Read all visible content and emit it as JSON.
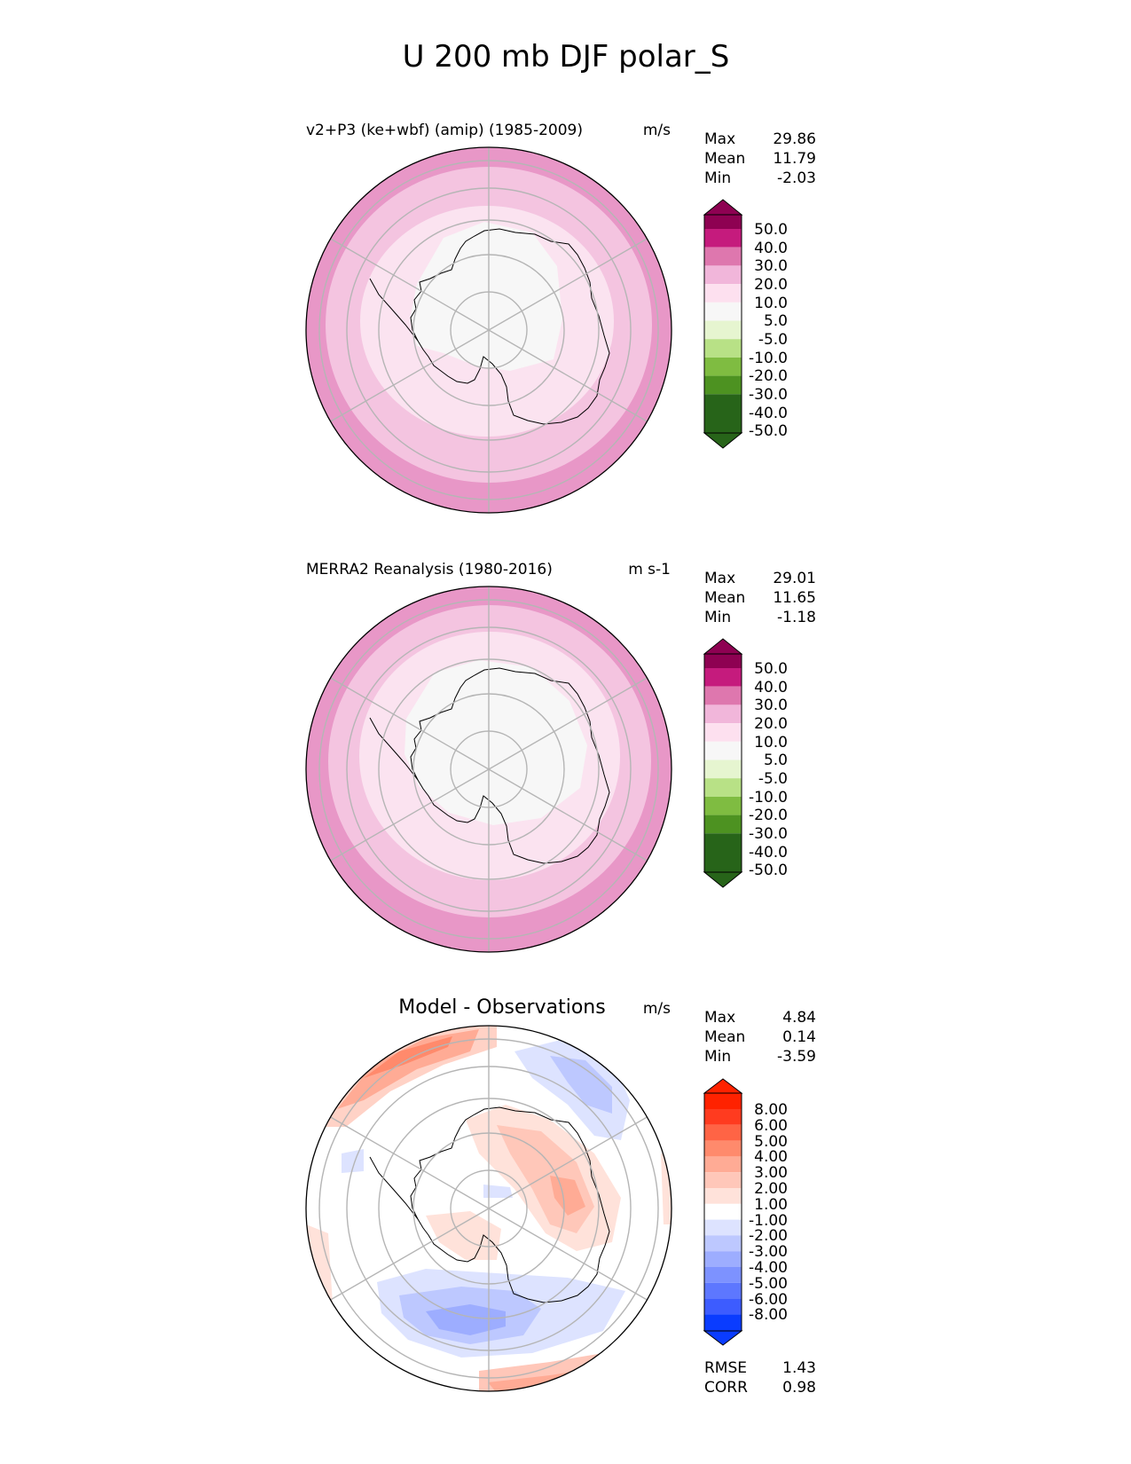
{
  "figure_title": "U 200 mb DJF polar_S",
  "chart_data": [
    {
      "type": "heatmap",
      "projection": "south-polar-stereographic",
      "title": "v2+P3 (ke+wbf) (amip) (1985-2009)",
      "units": "m/s",
      "stats": [
        {
          "label": "Max",
          "value": "29.86"
        },
        {
          "label": "Mean",
          "value": "11.79"
        },
        {
          "label": "Min",
          "value": "-2.03"
        }
      ],
      "colorbar": {
        "labels": [
          "50.0",
          "40.0",
          "30.0",
          "20.0",
          "10.0",
          "5.0",
          "-5.0",
          "-10.0",
          "-20.0",
          "-30.0",
          "-40.0",
          "-50.0"
        ],
        "colors": [
          "#8e0152",
          "#c51b7d",
          "#de77ae",
          "#f1b6da",
          "#fde0ef",
          "#f7f7f7",
          "#e6f5d0",
          "#b8e186",
          "#7fbc41",
          "#4d9221",
          "#276419"
        ],
        "top_extend": "#8e0152",
        "bottom_extend": "#276419"
      },
      "field_rings": [
        {
          "r": 1.0,
          "color": "#e897c7"
        },
        {
          "r": 0.88,
          "color": "#f4c4e0"
        },
        {
          "r": 0.68,
          "color": "#fbe3f0"
        },
        {
          "r": 0.44,
          "color": "#f7f7f7"
        }
      ]
    },
    {
      "type": "heatmap",
      "projection": "south-polar-stereographic",
      "title": "MERRA2 Reanalysis (1980-2016)",
      "units": "m s-1",
      "stats": [
        {
          "label": "Max",
          "value": "29.01"
        },
        {
          "label": "Mean",
          "value": "11.65"
        },
        {
          "label": "Min",
          "value": "-1.18"
        }
      ],
      "colorbar": {
        "labels": [
          "50.0",
          "40.0",
          "30.0",
          "20.0",
          "10.0",
          "5.0",
          "-5.0",
          "-10.0",
          "-20.0",
          "-30.0",
          "-40.0",
          "-50.0"
        ],
        "colors": [
          "#8e0152",
          "#c51b7d",
          "#de77ae",
          "#f1b6da",
          "#fde0ef",
          "#f7f7f7",
          "#e6f5d0",
          "#b8e186",
          "#7fbc41",
          "#4d9221",
          "#276419"
        ],
        "top_extend": "#8e0152",
        "bottom_extend": "#276419"
      },
      "field_rings": [
        {
          "r": 1.0,
          "color": "#e897c7"
        },
        {
          "r": 0.86,
          "color": "#f4c4e0"
        },
        {
          "r": 0.7,
          "color": "#fbe3f0"
        },
        {
          "r": 0.56,
          "color": "#f7f7f7"
        }
      ]
    },
    {
      "type": "heatmap",
      "projection": "south-polar-stereographic",
      "title": "Model - Observations",
      "units": "m/s",
      "stats": [
        {
          "label": "Max",
          "value": "4.84"
        },
        {
          "label": "Mean",
          "value": "0.14"
        },
        {
          "label": "Min",
          "value": "-3.59"
        }
      ],
      "colorbar": {
        "labels": [
          "8.00",
          "6.00",
          "5.00",
          "4.00",
          "3.00",
          "2.00",
          "1.00",
          "-1.00",
          "-2.00",
          "-3.00",
          "-4.00",
          "-5.00",
          "-6.00",
          "-8.00"
        ],
        "colors": [
          "#ff3b1f",
          "#ff6445",
          "#ff8a6c",
          "#ffab95",
          "#ffc7b9",
          "#ffe2da",
          "#ffffff",
          "#dde3ff",
          "#bdc8ff",
          "#9dadff",
          "#7d92ff",
          "#5d77ff",
          "#3d5cff"
        ],
        "top_extend": "#ff2200",
        "bottom_extend": "#0a3cff"
      },
      "footer_stats": [
        {
          "label": "RMSE",
          "value": "1.43"
        },
        {
          "label": "CORR",
          "value": "0.98"
        }
      ]
    }
  ]
}
